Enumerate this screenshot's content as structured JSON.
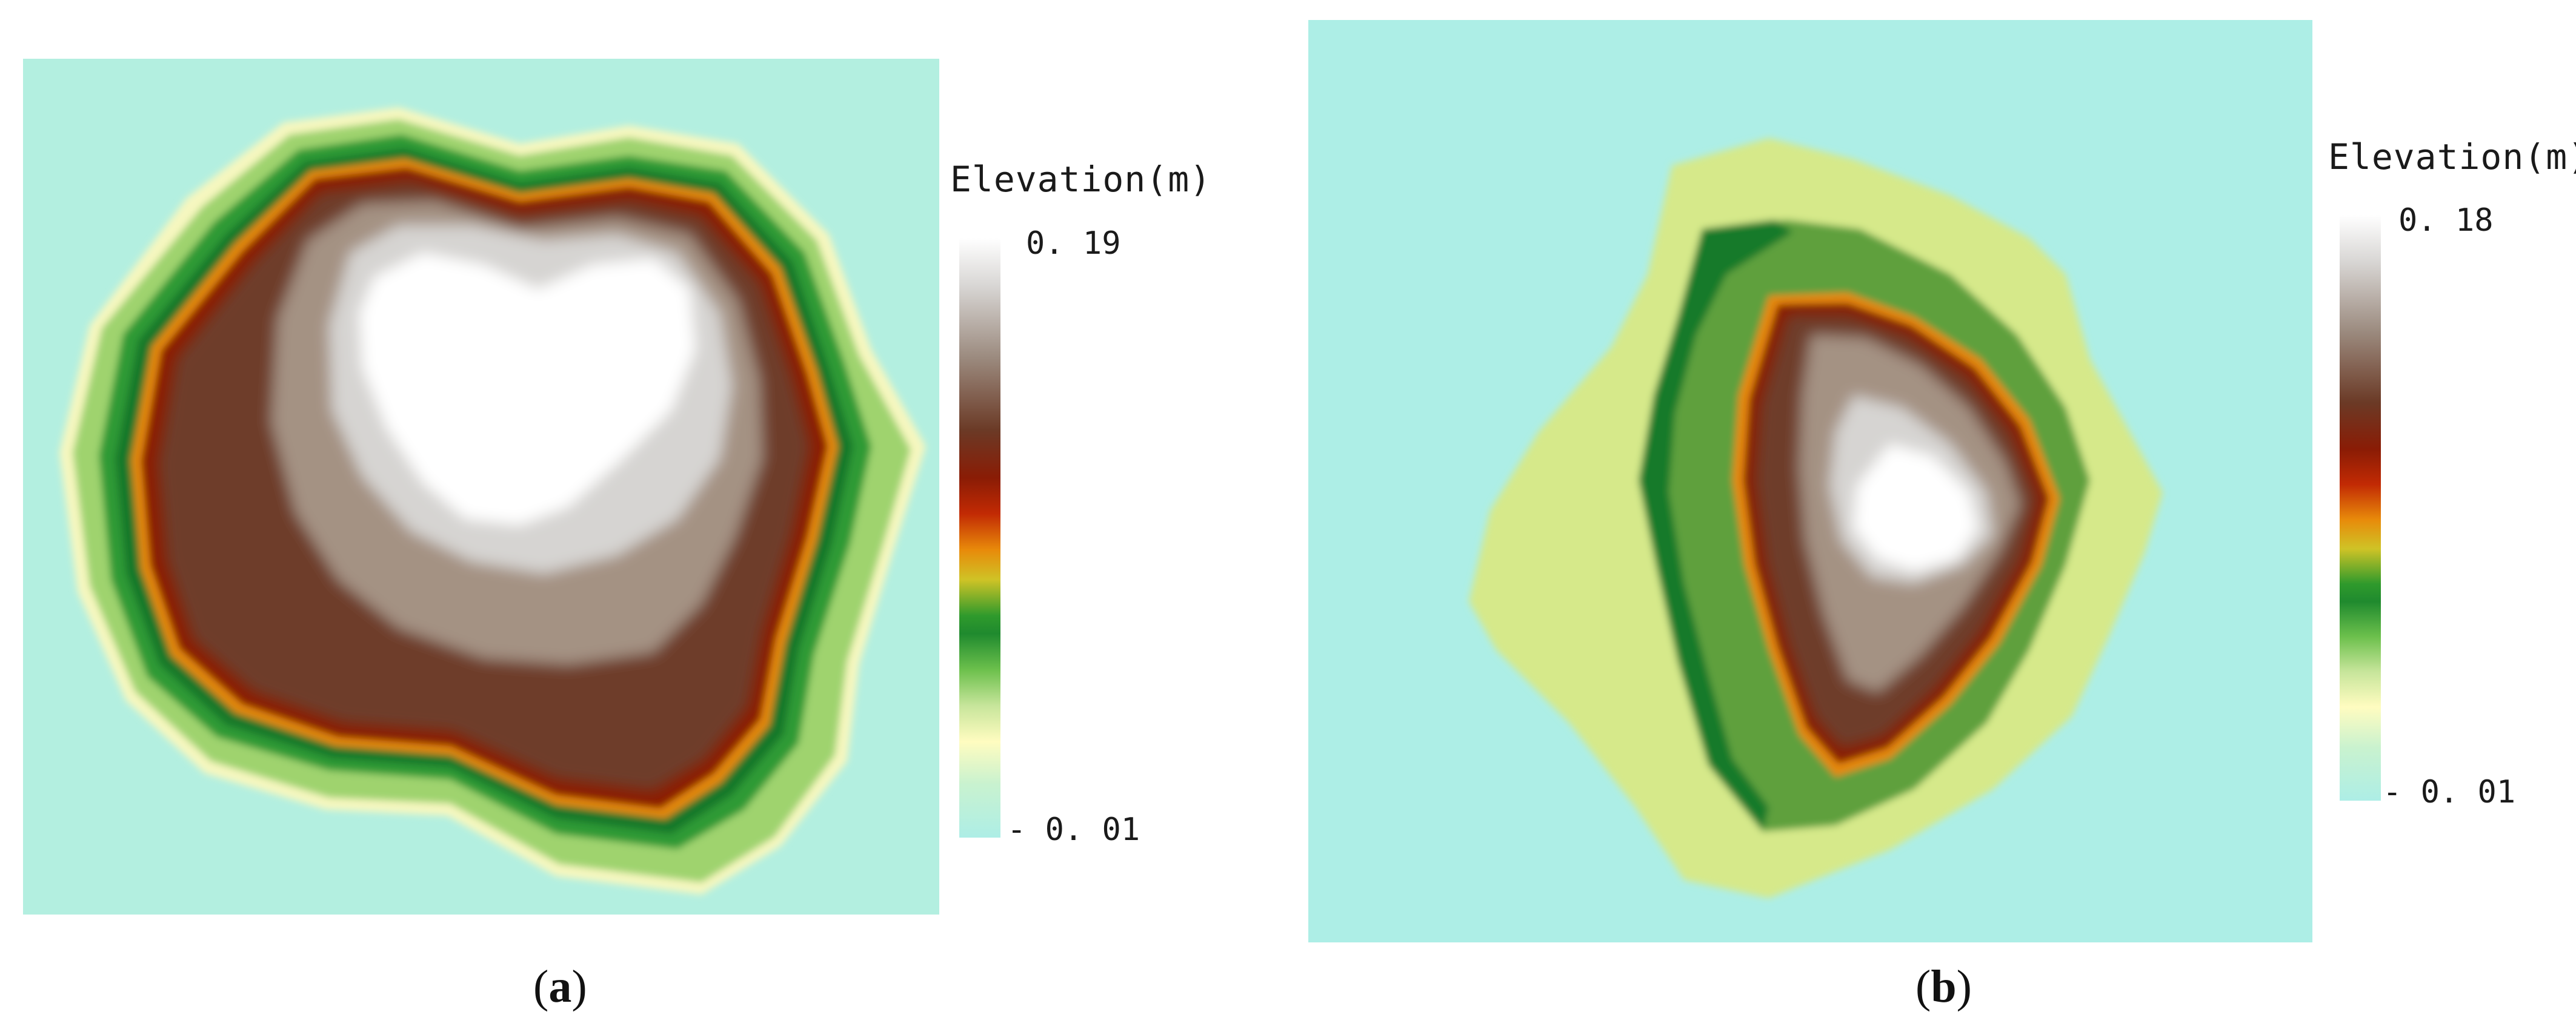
{
  "panels": [
    {
      "legend": {
        "title": "Elevation(m)",
        "max_label": "0. 19",
        "min_label": "- 0. 01",
        "max_value": 0.19,
        "min_value": -0.01
      },
      "caption": {
        "open": "(",
        "letter": "a",
        "close": ")"
      }
    },
    {
      "legend": {
        "title": "Elevation(m)",
        "max_label": "0. 18",
        "min_label": "- 0. 01",
        "max_value": 0.18,
        "min_value": -0.01
      },
      "caption": {
        "open": "(",
        "letter": "b",
        "close": ")"
      }
    }
  ],
  "colors": {
    "background_low": "#adeee6",
    "pale_yellow": "#fffcc0",
    "light_green": "#9ed46e",
    "green": "#2e9a35",
    "dark_green": "#157a2a",
    "orange": "#e8860c",
    "red_brown": "#8a1c05",
    "brown": "#6b3a26",
    "grey_brown": "#a39182",
    "light_grey": "#d4d2d0",
    "white_peak": "#ffffff"
  }
}
